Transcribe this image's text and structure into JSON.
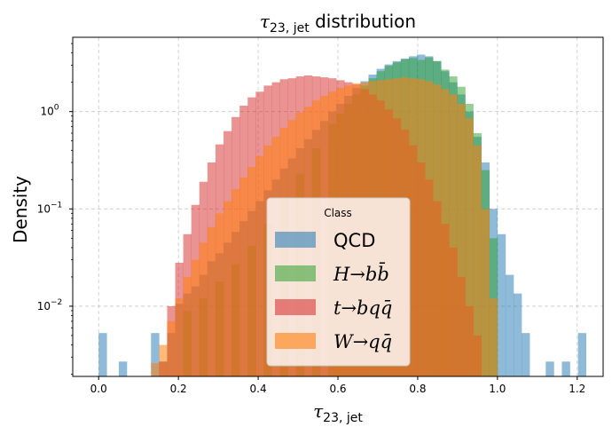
{
  "chart_data": {
    "type": "histogram",
    "title": {
      "symbol": "τ",
      "sub": "23, jet",
      "rest": " distribution"
    },
    "xlabel": {
      "symbol": "τ",
      "sub": "23, jet"
    },
    "ylabel": "Density",
    "xlim": [
      -0.065,
      1.265
    ],
    "ylim": [
      0.0019,
      5.8
    ],
    "yscale": "log",
    "grid": true,
    "x_ticks": [
      {
        "value": 0.0,
        "label": "0.0"
      },
      {
        "value": 0.2,
        "label": "0.2"
      },
      {
        "value": 0.4,
        "label": "0.4"
      },
      {
        "value": 0.6,
        "label": "0.6"
      },
      {
        "value": 0.8,
        "label": "0.8"
      },
      {
        "value": 1.0,
        "label": "1.0"
      },
      {
        "value": 1.2,
        "label": "1.2"
      }
    ],
    "y_ticks": [
      {
        "value": 0.01,
        "base": "10",
        "exp": "−2"
      },
      {
        "value": 0.1,
        "base": "10",
        "exp": "−1"
      },
      {
        "value": 1,
        "base": "10",
        "exp": "0"
      }
    ],
    "bin_width": 0.0202,
    "legend": {
      "title": "Class",
      "position": "lower center"
    },
    "series": [
      {
        "key": "qcd",
        "legend": {
          "pre": "QCD",
          "it": ""
        },
        "color": "#1f77b4",
        "alpha": 0.5,
        "bins": [
          [
            0.0,
            0.0053
          ],
          [
            0.0505,
            0.0027
          ],
          [
            0.1313,
            0.0053
          ],
          [
            0.1515,
            0.0027
          ],
          [
            0.1717,
            0.0053
          ],
          [
            0.1919,
            0.0106
          ],
          [
            0.2121,
            0.0135
          ],
          [
            0.2323,
            0.016
          ],
          [
            0.2525,
            0.021
          ],
          [
            0.2727,
            0.029
          ],
          [
            0.2929,
            0.035
          ],
          [
            0.3131,
            0.045
          ],
          [
            0.3333,
            0.058
          ],
          [
            0.3535,
            0.075
          ],
          [
            0.3737,
            0.095
          ],
          [
            0.3939,
            0.12
          ],
          [
            0.4141,
            0.155
          ],
          [
            0.4343,
            0.2
          ],
          [
            0.4545,
            0.26
          ],
          [
            0.4747,
            0.33
          ],
          [
            0.4949,
            0.42
          ],
          [
            0.5151,
            0.52
          ],
          [
            0.5353,
            0.65
          ],
          [
            0.5555,
            0.8
          ],
          [
            0.5757,
            1.0
          ],
          [
            0.5959,
            1.2
          ],
          [
            0.6161,
            1.45
          ],
          [
            0.6363,
            1.75
          ],
          [
            0.6565,
            2.05
          ],
          [
            0.6767,
            2.4
          ],
          [
            0.6969,
            2.75
          ],
          [
            0.7171,
            3.05
          ],
          [
            0.7373,
            3.3
          ],
          [
            0.7575,
            3.5
          ],
          [
            0.7777,
            3.7
          ],
          [
            0.7979,
            3.85
          ],
          [
            0.8181,
            3.7
          ],
          [
            0.8383,
            3.3
          ],
          [
            0.8585,
            2.6
          ],
          [
            0.8787,
            2.0
          ],
          [
            0.8989,
            1.5
          ],
          [
            0.9191,
            1.0
          ],
          [
            0.9393,
            0.55
          ],
          [
            0.9595,
            0.3
          ],
          [
            0.9797,
            0.1
          ],
          [
            0.9999,
            0.055
          ],
          [
            1.0201,
            0.021
          ],
          [
            1.0403,
            0.0135
          ],
          [
            1.0605,
            0.0053
          ],
          [
            1.1211,
            0.0027
          ],
          [
            1.1615,
            0.0027
          ],
          [
            1.2019,
            0.0053
          ]
        ]
      },
      {
        "key": "hbb",
        "legend": {
          "pre": "H→b",
          "it": "b̄"
        },
        "color": "#2ca02c",
        "alpha": 0.5,
        "bins": [
          [
            0.2121,
            0.009
          ],
          [
            0.2525,
            0.012
          ],
          [
            0.2929,
            0.018
          ],
          [
            0.3333,
            0.027
          ],
          [
            0.3737,
            0.042
          ],
          [
            0.4141,
            0.07
          ],
          [
            0.4545,
            0.13
          ],
          [
            0.4949,
            0.23
          ],
          [
            0.5353,
            0.42
          ],
          [
            0.5757,
            0.75
          ],
          [
            0.5959,
            0.95
          ],
          [
            0.6161,
            1.2
          ],
          [
            0.6363,
            1.5
          ],
          [
            0.6565,
            1.85
          ],
          [
            0.6767,
            2.2
          ],
          [
            0.6969,
            2.6
          ],
          [
            0.7171,
            2.95
          ],
          [
            0.7373,
            3.2
          ],
          [
            0.7575,
            3.45
          ],
          [
            0.7777,
            3.55
          ],
          [
            0.7979,
            3.4
          ],
          [
            0.8181,
            3.6
          ],
          [
            0.8383,
            3.3
          ],
          [
            0.8585,
            2.7
          ],
          [
            0.8787,
            2.3
          ],
          [
            0.8989,
            1.8
          ],
          [
            0.9191,
            1.2
          ],
          [
            0.9393,
            0.6
          ],
          [
            0.9595,
            0.25
          ],
          [
            0.9797,
            0.05
          ]
        ]
      },
      {
        "key": "tbqq",
        "legend": {
          "pre": "t→bq",
          "it": "q̄"
        },
        "color": "#d62728",
        "alpha": 0.5,
        "bins": [
          [
            0.1515,
            0.0027
          ],
          [
            0.1717,
            0.01
          ],
          [
            0.1919,
            0.028
          ],
          [
            0.2121,
            0.055
          ],
          [
            0.2323,
            0.11
          ],
          [
            0.2525,
            0.19
          ],
          [
            0.2727,
            0.3
          ],
          [
            0.2929,
            0.46
          ],
          [
            0.3131,
            0.63
          ],
          [
            0.3333,
            0.88
          ],
          [
            0.3535,
            1.15
          ],
          [
            0.3737,
            1.4
          ],
          [
            0.3939,
            1.6
          ],
          [
            0.4141,
            1.85
          ],
          [
            0.4343,
            2.0
          ],
          [
            0.4545,
            2.15
          ],
          [
            0.4747,
            2.2
          ],
          [
            0.4949,
            2.3
          ],
          [
            0.5151,
            2.35
          ],
          [
            0.5353,
            2.3
          ],
          [
            0.5555,
            2.25
          ],
          [
            0.5757,
            2.2
          ],
          [
            0.5959,
            2.1
          ],
          [
            0.6161,
            2.0
          ],
          [
            0.6363,
            1.9
          ],
          [
            0.6565,
            1.7
          ],
          [
            0.6767,
            1.5
          ],
          [
            0.6969,
            1.3
          ],
          [
            0.7171,
            1.05
          ],
          [
            0.7373,
            0.85
          ],
          [
            0.7575,
            0.65
          ],
          [
            0.7777,
            0.45
          ],
          [
            0.7979,
            0.3
          ],
          [
            0.8181,
            0.2
          ],
          [
            0.8383,
            0.12
          ],
          [
            0.8585,
            0.07
          ],
          [
            0.8787,
            0.04
          ],
          [
            0.8989,
            0.02
          ],
          [
            0.9191,
            0.01
          ],
          [
            0.9393,
            0.005
          ]
        ]
      },
      {
        "key": "wqq",
        "legend": {
          "pre": "W→q",
          "it": "q̄"
        },
        "color": "#ff7f0e",
        "alpha": 0.55,
        "bins": [
          [
            0.1313,
            0.0026
          ],
          [
            0.1515,
            0.004
          ],
          [
            0.1717,
            0.007
          ],
          [
            0.1919,
            0.012
          ],
          [
            0.2121,
            0.02
          ],
          [
            0.2323,
            0.03
          ],
          [
            0.2525,
            0.045
          ],
          [
            0.2727,
            0.065
          ],
          [
            0.2929,
            0.09
          ],
          [
            0.3131,
            0.12
          ],
          [
            0.3333,
            0.16
          ],
          [
            0.3535,
            0.21
          ],
          [
            0.3737,
            0.27
          ],
          [
            0.3939,
            0.35
          ],
          [
            0.4141,
            0.45
          ],
          [
            0.4343,
            0.55
          ],
          [
            0.4545,
            0.68
          ],
          [
            0.4747,
            0.82
          ],
          [
            0.4949,
            0.98
          ],
          [
            0.5151,
            1.12
          ],
          [
            0.5353,
            1.3
          ],
          [
            0.5555,
            1.45
          ],
          [
            0.5757,
            1.6
          ],
          [
            0.5959,
            1.75
          ],
          [
            0.6161,
            1.85
          ],
          [
            0.6363,
            1.95
          ],
          [
            0.6565,
            2.0
          ],
          [
            0.6767,
            2.05
          ],
          [
            0.6969,
            2.1
          ],
          [
            0.7171,
            2.15
          ],
          [
            0.7373,
            2.2
          ],
          [
            0.7575,
            2.25
          ],
          [
            0.7777,
            2.2
          ],
          [
            0.7979,
            2.15
          ],
          [
            0.8181,
            2.05
          ],
          [
            0.8383,
            1.9
          ],
          [
            0.8585,
            1.7
          ],
          [
            0.8787,
            1.5
          ],
          [
            0.8989,
            1.2
          ],
          [
            0.9191,
            0.85
          ],
          [
            0.9393,
            0.45
          ],
          [
            0.9595,
            0.1
          ],
          [
            0.9797,
            0.012
          ]
        ]
      }
    ]
  }
}
